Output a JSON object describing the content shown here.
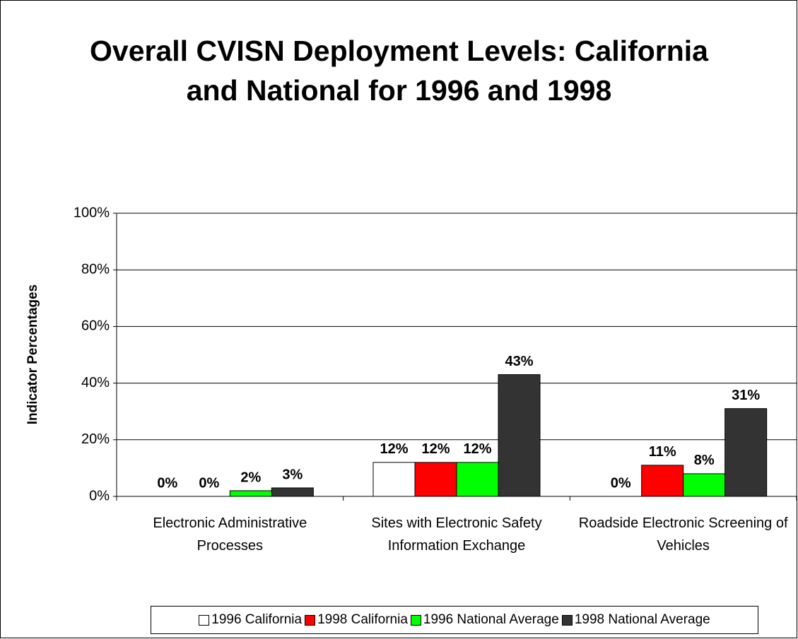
{
  "chart_data": {
    "type": "bar",
    "title": "Overall CVISN Deployment Levels: California and National for 1996 and 1998",
    "y_label": "Indicator Percentages",
    "categories": [
      "Electronic Administrative Processes",
      "Sites with Electronic Safety Information Exchange",
      "Roadside Electronic Screening of Vehicles"
    ],
    "series": [
      {
        "name": "1996 California",
        "color": "#ffffff",
        "values": [
          0,
          12,
          0
        ],
        "value_labels": [
          "0%",
          "12%",
          "0%"
        ]
      },
      {
        "name": "1998 California",
        "color": "#ff0000",
        "values": [
          0,
          12,
          11
        ],
        "value_labels": [
          "0%",
          "12%",
          "11%"
        ]
      },
      {
        "name": "1996 National Average",
        "color": "#00ff00",
        "values": [
          2,
          12,
          8
        ],
        "value_labels": [
          "2%",
          "12%",
          "8%"
        ]
      },
      {
        "name": "1998 National Average",
        "color": "#333333",
        "values": [
          3,
          43,
          31
        ],
        "value_labels": [
          "3%",
          "43%",
          "31%"
        ]
      }
    ],
    "ylim": [
      0,
      100
    ],
    "yticks": [
      {
        "value": 0,
        "label": "0%"
      },
      {
        "value": 20,
        "label": "20%"
      },
      {
        "value": 40,
        "label": "40%"
      },
      {
        "value": 60,
        "label": "60%"
      },
      {
        "value": 80,
        "label": "80%"
      },
      {
        "value": 100,
        "label": "100%"
      }
    ],
    "grid": true,
    "legend": "bottom"
  }
}
